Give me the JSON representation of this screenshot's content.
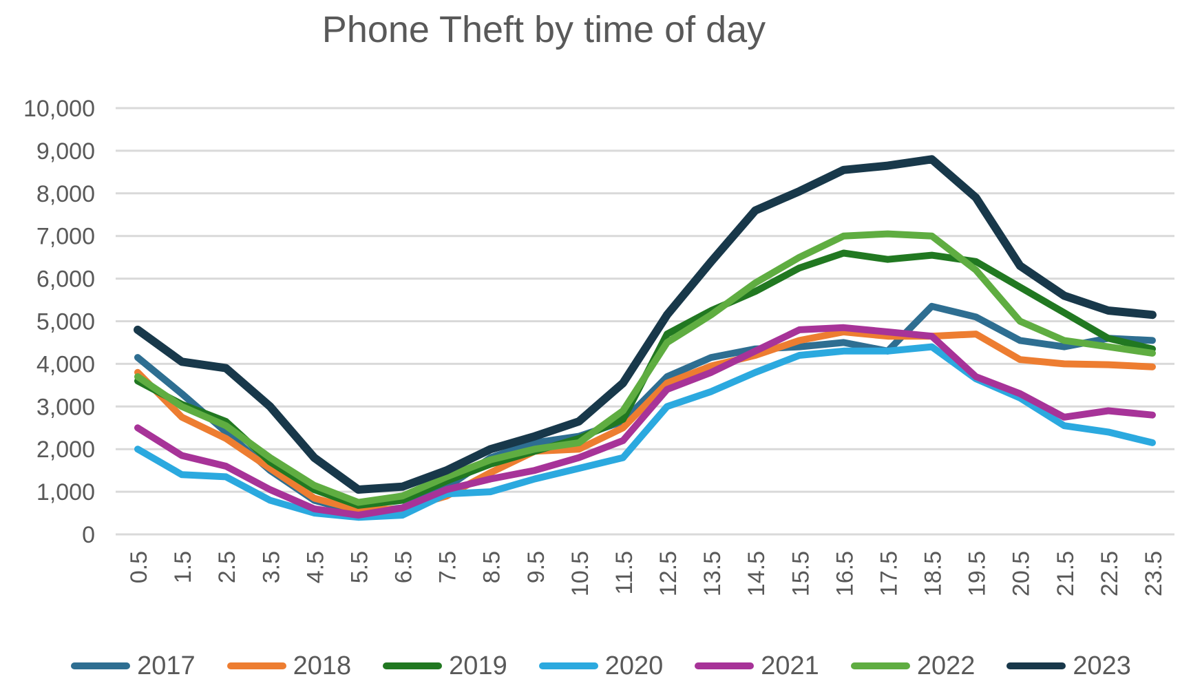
{
  "title": "Phone Theft by time of day",
  "colors": {
    "text": "#595959",
    "gridline": "#D9D9D9",
    "background": "#FFFFFF"
  },
  "chart_data": {
    "type": "line",
    "title": "Phone Theft by time of day",
    "xlabel": "",
    "ylabel": "",
    "x": [
      0.5,
      1.5,
      2.5,
      3.5,
      4.5,
      5.5,
      6.5,
      7.5,
      8.5,
      9.5,
      10.5,
      11.5,
      12.5,
      13.5,
      14.5,
      15.5,
      16.5,
      17.5,
      18.5,
      19.5,
      20.5,
      21.5,
      22.5,
      23.5
    ],
    "x_tick_labels": [
      "0.5",
      "1.5",
      "2.5",
      "3.5",
      "4.5",
      "5.5",
      "6.5",
      "7.5",
      "8.5",
      "9.5",
      "10.5",
      "11.5",
      "12.5",
      "13.5",
      "14.5",
      "15.5",
      "16.5",
      "17.5",
      "18.5",
      "19.5",
      "20.5",
      "21.5",
      "22.5",
      "23.5"
    ],
    "ylim": [
      0,
      10000
    ],
    "ytick_step": 1000,
    "y_tick_labels": [
      "0",
      "1,000",
      "2,000",
      "3,000",
      "4,000",
      "5,000",
      "6,000",
      "7,000",
      "8,000",
      "9,000",
      "10,000"
    ],
    "grid": true,
    "legend_position": "bottom",
    "series": [
      {
        "name": "2017",
        "color": "#2E6E91",
        "values": [
          4150,
          3300,
          2400,
          1500,
          800,
          520,
          620,
          1100,
          1800,
          2150,
          2300,
          2650,
          3700,
          4150,
          4350,
          4400,
          4500,
          4300,
          5350,
          5100,
          4550,
          4400,
          4600,
          4550
        ]
      },
      {
        "name": "2018",
        "color": "#ED7D31",
        "values": [
          3800,
          2750,
          2250,
          1550,
          850,
          570,
          600,
          900,
          1450,
          1950,
          2000,
          2500,
          3550,
          3950,
          4200,
          4550,
          4750,
          4650,
          4650,
          4700,
          4100,
          4000,
          3980,
          3930
        ]
      },
      {
        "name": "2019",
        "color": "#217821",
        "values": [
          3600,
          3050,
          2650,
          1700,
          1050,
          680,
          800,
          1250,
          1650,
          1950,
          2250,
          2700,
          4700,
          5250,
          5700,
          6250,
          6600,
          6450,
          6550,
          6400,
          5800,
          5200,
          4600,
          4350
        ]
      },
      {
        "name": "2020",
        "color": "#2BA9DF",
        "values": [
          2000,
          1400,
          1350,
          800,
          500,
          400,
          450,
          950,
          1000,
          1300,
          1550,
          1800,
          3000,
          3350,
          3800,
          4200,
          4300,
          4300,
          4400,
          3650,
          3200,
          2550,
          2400,
          2150
        ]
      },
      {
        "name": "2021",
        "color": "#A73398",
        "values": [
          2500,
          1850,
          1600,
          1050,
          600,
          450,
          620,
          1050,
          1300,
          1500,
          1800,
          2200,
          3400,
          3800,
          4300,
          4800,
          4850,
          4750,
          4650,
          3700,
          3300,
          2750,
          2900,
          2800
        ]
      },
      {
        "name": "2022",
        "color": "#5FAD41",
        "values": [
          3700,
          3000,
          2550,
          1800,
          1150,
          750,
          900,
          1350,
          1750,
          2000,
          2150,
          2900,
          4500,
          5150,
          5900,
          6500,
          7000,
          7050,
          7000,
          6200,
          5000,
          4550,
          4400,
          4250
        ]
      },
      {
        "name": "2023",
        "color": "#18384A",
        "values": [
          4800,
          4050,
          3900,
          3000,
          1800,
          1050,
          1120,
          1500,
          2000,
          2300,
          2650,
          3550,
          5150,
          6400,
          7600,
          8050,
          8550,
          8650,
          8800,
          7900,
          6300,
          5600,
          5250,
          5150
        ]
      }
    ]
  }
}
